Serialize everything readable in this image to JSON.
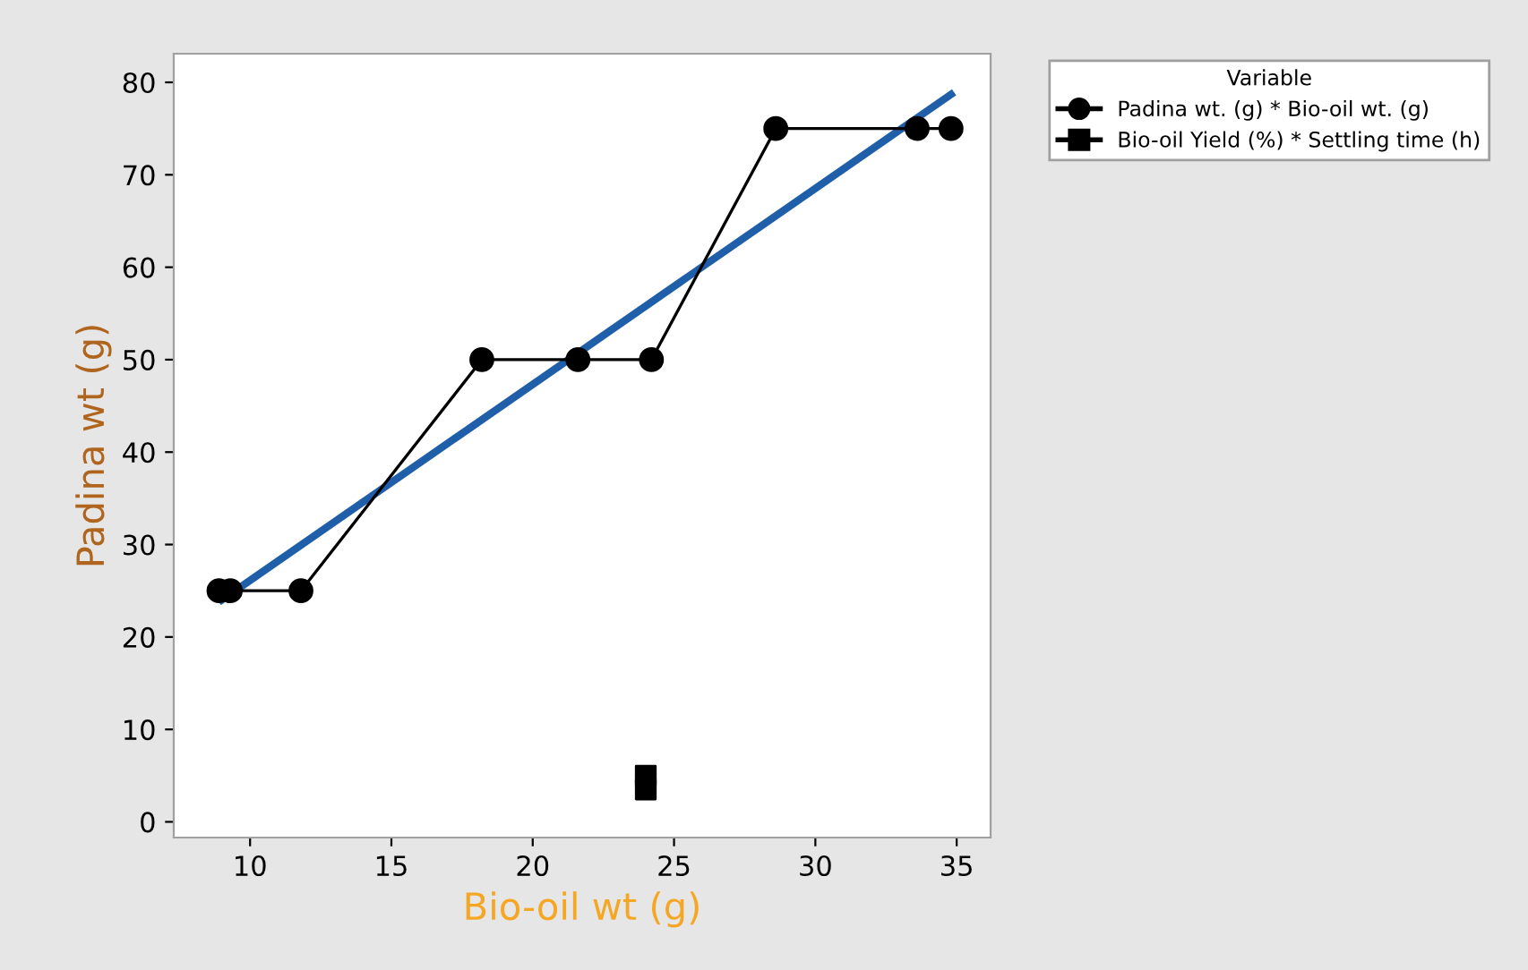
{
  "chart_data": {
    "type": "line",
    "xlabel": "Bio-oil wt (g)",
    "ylabel": "Padina wt (g)",
    "legend_title": "Variable",
    "xlim": [
      7.3,
      36.2
    ],
    "xticks": [
      10,
      15,
      20,
      25,
      30,
      35
    ],
    "ylim": [
      -1.7,
      83.1
    ],
    "yticks": [
      0,
      10,
      20,
      30,
      40,
      50,
      60,
      70,
      80
    ],
    "grid": false,
    "legend": "top right",
    "series": [
      {
        "name": "Padina wt. (g) * Bio-oil wt. (g)",
        "marker": "circle",
        "color": "#000000",
        "x": [
          8.9,
          9.3,
          11.8,
          18.2,
          21.6,
          24.2,
          28.6,
          33.6,
          34.8
        ],
        "values": [
          25,
          25,
          25,
          50,
          50,
          50,
          75,
          75,
          75
        ]
      },
      {
        "name": "Bio-oil Yield (%) * Settling time (h)",
        "type": "scatter",
        "marker": "square",
        "color": "#000000",
        "x": [
          24,
          24
        ],
        "values": [
          3.5,
          5
        ]
      },
      {
        "marker": "none",
        "color": "#1f5ea8",
        "x": [
          9.0,
          34.8
        ],
        "values": [
          24,
          78.7
        ]
      }
    ]
  }
}
